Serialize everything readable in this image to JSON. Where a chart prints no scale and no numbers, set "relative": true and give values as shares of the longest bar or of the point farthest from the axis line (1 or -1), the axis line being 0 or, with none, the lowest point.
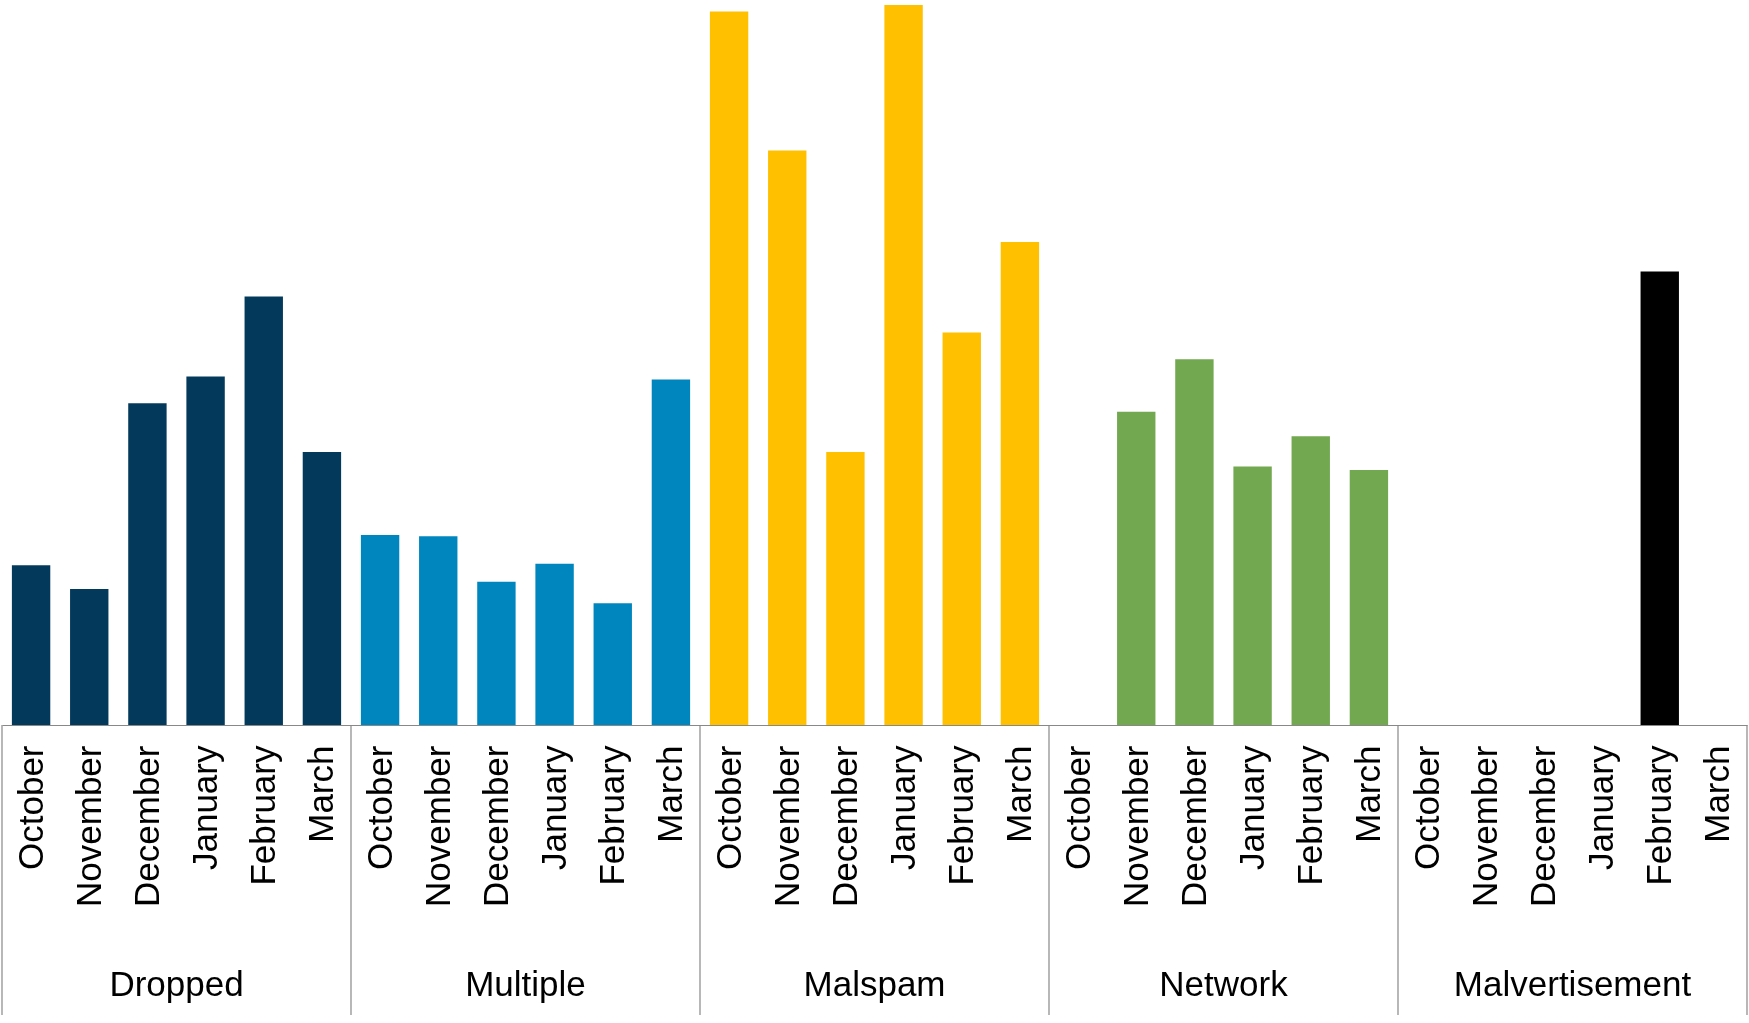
{
  "chart_data": {
    "type": "bar",
    "relative": true,
    "categories": [
      "October",
      "November",
      "December",
      "January",
      "February",
      "March",
      "October",
      "November",
      "December",
      "January",
      "February",
      "March",
      "October",
      "November",
      "December",
      "January",
      "February",
      "March",
      "October",
      "November",
      "December",
      "January",
      "February",
      "March",
      "October",
      "November",
      "December",
      "January",
      "February",
      "March"
    ],
    "values": [
      0.222,
      0.189,
      0.447,
      0.484,
      0.595,
      0.379,
      0.264,
      0.262,
      0.199,
      0.224,
      0.169,
      0.48,
      0.991,
      0.798,
      0.379,
      1,
      0.545,
      0.671,
      null,
      0.435,
      0.508,
      0.359,
      0.401,
      0.354,
      null,
      null,
      null,
      null,
      0.63,
      null
    ],
    "colors": [
      "#033a5c",
      "#033a5c",
      "#033a5c",
      "#033a5c",
      "#033a5c",
      "#033a5c",
      "#0086be",
      "#0086be",
      "#0086be",
      "#0086be",
      "#0086be",
      "#0086be",
      "#ffc000",
      "#ffc000",
      "#ffc000",
      "#ffc000",
      "#ffc000",
      "#ffc000",
      null,
      "#72a950",
      "#72a950",
      "#72a950",
      "#72a950",
      "#72a950",
      null,
      null,
      null,
      null,
      "#000000",
      null
    ],
    "annotations": [
      "Dropped",
      "Multiple",
      "Malspam",
      "Network",
      "Malvertisement"
    ]
  }
}
